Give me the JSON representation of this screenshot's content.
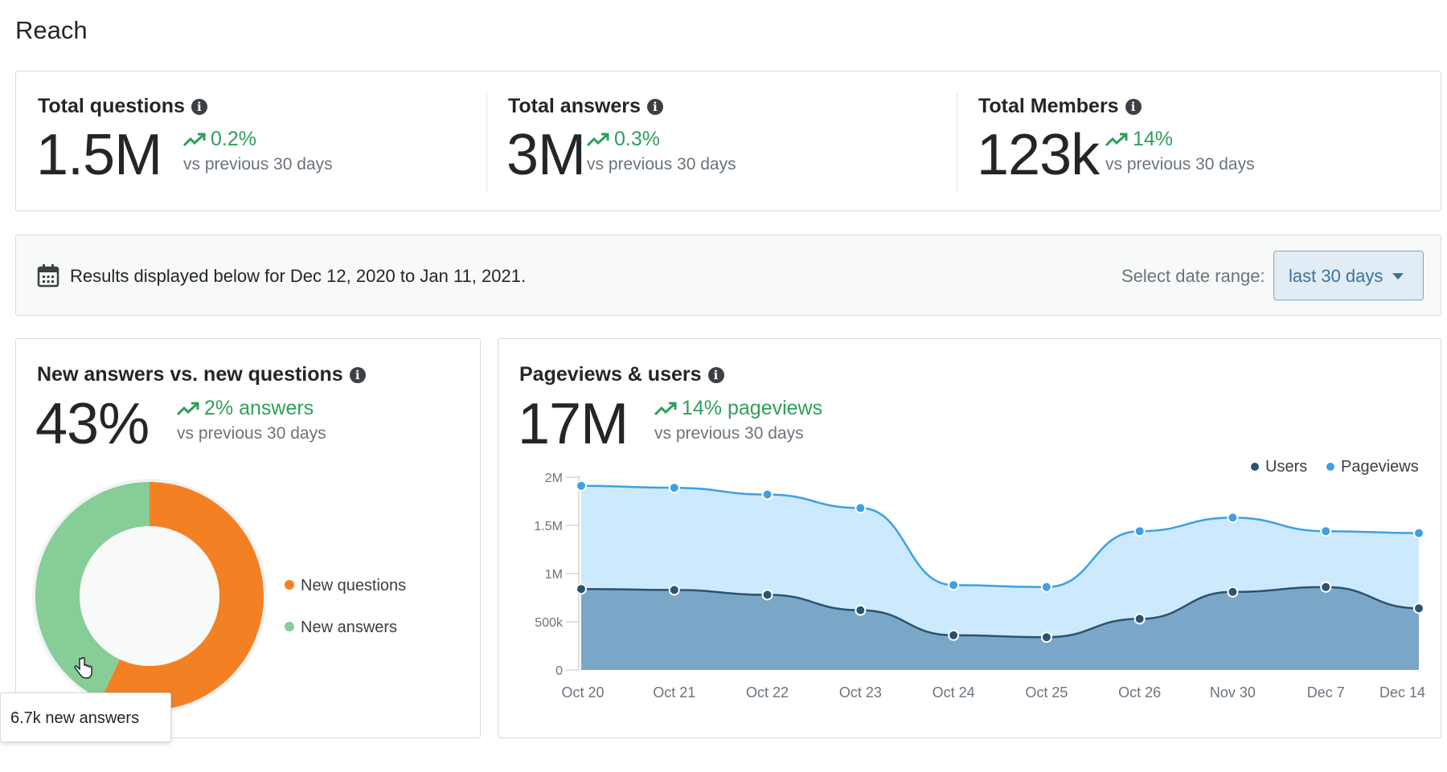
{
  "page": {
    "title": "Reach"
  },
  "stats": [
    {
      "label": "Total questions",
      "value": "1.5M",
      "trend": "0.2%",
      "compare": "vs previous 30 days"
    },
    {
      "label": "Total answers",
      "value": "3M",
      "trend": "0.3%",
      "compare": "vs previous 30 days"
    },
    {
      "label": "Total Members",
      "value": "123k",
      "trend": "14%",
      "compare": "vs previous 30 days"
    }
  ],
  "date_bar": {
    "results_text": "Results displayed below for Dec 12, 2020 to Jan 11, 2021.",
    "range_label": "Select date range:",
    "range_value": "last 30 days"
  },
  "donut_card": {
    "title": "New answers vs. new questions",
    "value": "43%",
    "trend": "2% answers",
    "compare": "vs previous 30 days",
    "legend": [
      {
        "label": "New questions",
        "color": "#f48024"
      },
      {
        "label": "New answers",
        "color": "#86cd97"
      }
    ],
    "tooltip": "6.7k new answers"
  },
  "line_card": {
    "title": "Pageviews & users",
    "value": "17M",
    "trend": "14% pageviews",
    "compare": "vs previous 30 days",
    "legend": [
      {
        "label": "Users",
        "color": "#2c5270"
      },
      {
        "label": "Pageviews",
        "color": "#3d9fe5"
      }
    ]
  },
  "colors": {
    "trend_green": "#2f9e5b",
    "questions_orange": "#f48024",
    "answers_green": "#86cd97",
    "pageviews_blue": "#3d9fe5",
    "users_navy": "#2c5270"
  },
  "chart_data": [
    {
      "type": "pie",
      "variant": "donut",
      "labels": [
        "New questions",
        "New answers"
      ],
      "values": [
        57,
        43
      ],
      "colors": [
        "#f48024",
        "#86cd97"
      ]
    },
    {
      "type": "area",
      "categories": [
        "Oct 20",
        "Oct 21",
        "Oct 22",
        "Oct 23",
        "Oct 24",
        "Oct 25",
        "Oct 26",
        "Nov 30",
        "Dec 7",
        "Dec 14"
      ],
      "series": [
        {
          "name": "Pageviews",
          "color": "#3d9fe5",
          "values": [
            1910000,
            1890000,
            1820000,
            1680000,
            880000,
            860000,
            1440000,
            1580000,
            1440000,
            1420000
          ]
        },
        {
          "name": "Users",
          "color": "#2c5270",
          "values": [
            840000,
            830000,
            780000,
            620000,
            360000,
            340000,
            530000,
            810000,
            860000,
            640000
          ]
        }
      ],
      "y_ticks": [
        "0",
        "500k",
        "1M",
        "1.5M",
        "2M"
      ],
      "ylim": [
        0,
        2000000
      ],
      "legend_position": "top-right",
      "grid": false
    }
  ]
}
